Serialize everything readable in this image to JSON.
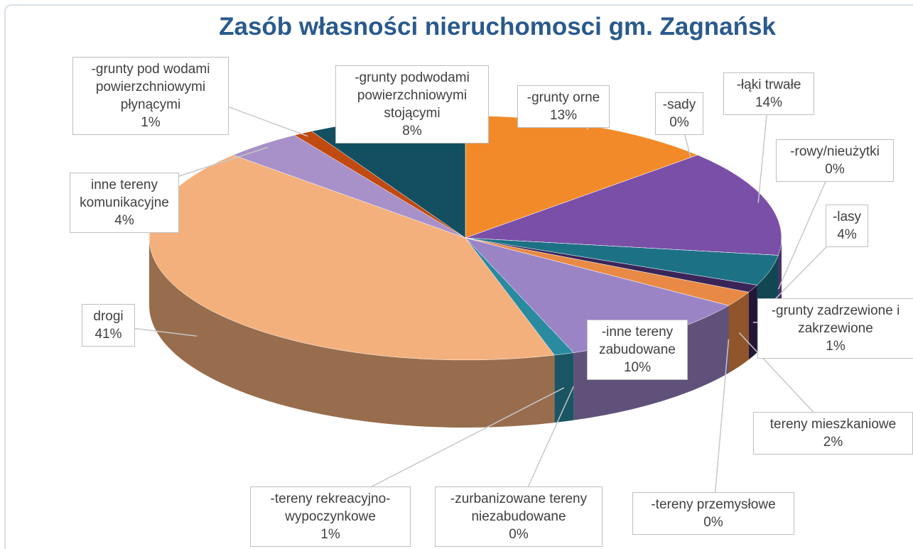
{
  "chart_data": {
    "type": "pie",
    "title": "Zasób własności nieruchomosci gm. Zagnańsk",
    "categories": [
      "-grunty orne",
      "-sady",
      "-łąki trwałe",
      "-rowy/nieużytki",
      "-lasy",
      "-grunty zadrzewione i zakrzewione",
      "tereny mieszkaniowe",
      "-tereny przemysłowe",
      "-inne tereny zabudowane",
      "-zurbanizowane tereny niezabudowane",
      "-tereny rekreacyjno-wypoczynkowe",
      "drogi",
      "inne tereny komunikacyjne",
      "-grunty pod wodami powierzchniowymi płynącymi",
      "-grunty podwodami powierzchniowymi stojącymi"
    ],
    "values": [
      13,
      0,
      14,
      0,
      4,
      1,
      2,
      0,
      10,
      0,
      1,
      41,
      4,
      1,
      8
    ],
    "value_labels": [
      "13%",
      "0%",
      "14%",
      "0%",
      "4%",
      "1%",
      "2%",
      "0%",
      "10%",
      "0%",
      "1%",
      "41%",
      "4%",
      "1%",
      "8%"
    ],
    "colors": [
      "#f28a2a",
      "#7a55a8",
      "#7a4fa8",
      "#d8601a",
      "#1d7185",
      "#3a2558",
      "#e88a45",
      "#2c1f40",
      "#9a84c6",
      "#d85a10",
      "#2a8aa0",
      "#f4b07c",
      "#a890c8",
      "#c04a12",
      "#124f60"
    ]
  }
}
